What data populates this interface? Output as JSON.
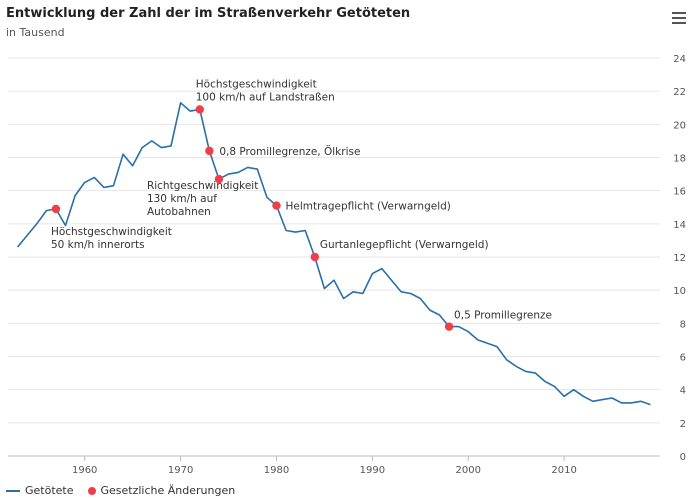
{
  "chart_data": {
    "type": "line",
    "title": "Entwicklung der Zahl der im Straßenverkehr Getöteten",
    "subtitle": "in Tausend",
    "xlim": [
      1952,
      2020
    ],
    "ylim": [
      0,
      24
    ],
    "x_ticks": [
      "1960",
      "1970",
      "1980",
      "1990",
      "2000",
      "2010"
    ],
    "y_ticks": [
      "0",
      "2",
      "4",
      "6",
      "8",
      "10",
      "12",
      "14",
      "16",
      "18",
      "20",
      "22",
      "24"
    ],
    "grid": true,
    "legend_position": "bottom-left",
    "series": [
      {
        "name": "Getötete",
        "color": "#2a6fa8",
        "x": [
          1953,
          1954,
          1955,
          1956,
          1957,
          1958,
          1959,
          1960,
          1961,
          1962,
          1963,
          1964,
          1965,
          1966,
          1967,
          1968,
          1969,
          1970,
          1971,
          1972,
          1973,
          1974,
          1975,
          1976,
          1977,
          1978,
          1979,
          1980,
          1981,
          1982,
          1983,
          1984,
          1985,
          1986,
          1987,
          1988,
          1989,
          1990,
          1991,
          1992,
          1993,
          1994,
          1995,
          1996,
          1997,
          1998,
          1999,
          2000,
          2001,
          2002,
          2003,
          2004,
          2005,
          2006,
          2007,
          2008,
          2009,
          2010,
          2011,
          2012,
          2013,
          2014,
          2015,
          2016,
          2017,
          2018,
          2019
        ],
        "y": [
          12.6,
          13.3,
          14.0,
          14.8,
          14.9,
          13.9,
          15.7,
          16.5,
          16.8,
          16.2,
          16.3,
          18.2,
          17.5,
          18.6,
          19.0,
          18.6,
          18.7,
          21.3,
          20.8,
          20.9,
          18.4,
          16.7,
          17.0,
          17.1,
          17.4,
          17.3,
          15.6,
          15.1,
          13.6,
          13.5,
          13.6,
          12.0,
          10.1,
          10.6,
          9.5,
          9.9,
          9.8,
          11.0,
          11.3,
          10.6,
          9.9,
          9.8,
          9.5,
          8.8,
          8.5,
          7.8,
          7.8,
          7.5,
          7.0,
          6.8,
          6.6,
          5.8,
          5.4,
          5.1,
          5.0,
          4.5,
          4.2,
          3.6,
          4.0,
          3.6,
          3.3,
          3.4,
          3.5,
          3.2,
          3.2,
          3.3,
          3.1
        ]
      },
      {
        "name": "Gesetzliche Änderungen",
        "color": "#ef3e4a",
        "points": [
          {
            "x": 1957,
            "y": 14.9,
            "label": [
              "Höchstgeschwindigkeit",
              "50 km/h innerorts"
            ]
          },
          {
            "x": 1972,
            "y": 20.9,
            "label": [
              "Höchstgeschwindigkeit",
              "100 km/h auf Landstraßen"
            ]
          },
          {
            "x": 1973,
            "y": 18.4,
            "label": [
              "0,8 Promillegrenze, Ölkrise"
            ]
          },
          {
            "x": 1974,
            "y": 16.7,
            "label": [
              "Richtgeschwindigkeit",
              "130 km/h auf",
              "Autobahnen"
            ]
          },
          {
            "x": 1980,
            "y": 15.1,
            "label": [
              "Helmtragepflicht (Verwarngeld)"
            ]
          },
          {
            "x": 1984,
            "y": 12.0,
            "label": [
              "Gurtanlegepflicht (Verwarngeld)"
            ]
          },
          {
            "x": 1998,
            "y": 7.8,
            "label": [
              "0,5 Promillegrenze"
            ]
          }
        ]
      }
    ]
  },
  "ui": {
    "menu_icon": "hamburger-menu-icon"
  }
}
